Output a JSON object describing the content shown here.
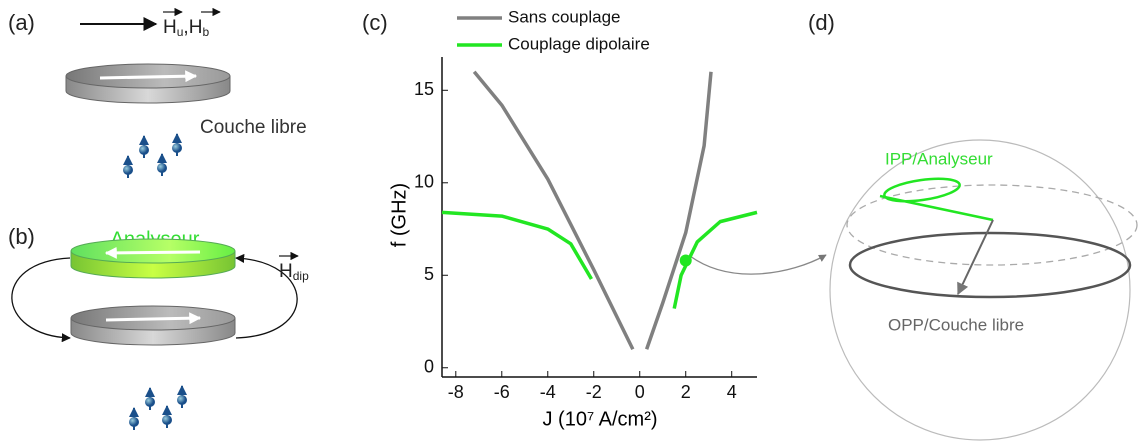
{
  "panels": [
    "(a)",
    "(b)",
    "(c)",
    "(d)"
  ],
  "panel_a": {
    "fields": [
      {
        "main": "H",
        "sub": "u"
      },
      {
        "main": "H",
        "sub": "b"
      }
    ],
    "separator": ",",
    "layer": "Couche libre"
  },
  "panel_b": {
    "layer": "Analyseur",
    "field": {
      "main": "H",
      "sub": "dip"
    }
  },
  "panel_d": {
    "inner": "IPP/Analyseur",
    "outer": "OPP/Couche libre"
  },
  "chart_data": {
    "type": "line",
    "xlabel": "J (10⁷ A/cm²)",
    "ylabel": "f (GHz)",
    "xlim": [
      -8.6,
      5.1
    ],
    "ylim": [
      -0.5,
      16.8
    ],
    "xticks": [
      -8,
      -6,
      -4,
      -2,
      0,
      2,
      4
    ],
    "yticks": [
      0,
      5,
      10,
      15
    ],
    "series": [
      {
        "name": "Sans couplage",
        "color": "#808080",
        "x": [
          -7.2,
          -6,
          -4,
          -2,
          -0.3,
          null,
          0.3,
          1,
          2,
          2.8,
          3.1
        ],
        "values": [
          16,
          14.2,
          10.2,
          5.3,
          1,
          null,
          1,
          3.5,
          7.3,
          12,
          16
        ]
      },
      {
        "name": "Couplage dipolaire",
        "color": "#22e622",
        "x": [
          -8.6,
          -6,
          -4,
          -3,
          -2.1,
          null,
          1.5,
          1.8,
          2.5,
          3.5,
          5.1
        ],
        "values": [
          8.4,
          8.2,
          7.5,
          6.7,
          4.8,
          null,
          3.2,
          5,
          6.8,
          7.9,
          8.4
        ]
      }
    ],
    "marker": {
      "x": 2,
      "y": 5.8,
      "color": "#22e622"
    }
  }
}
